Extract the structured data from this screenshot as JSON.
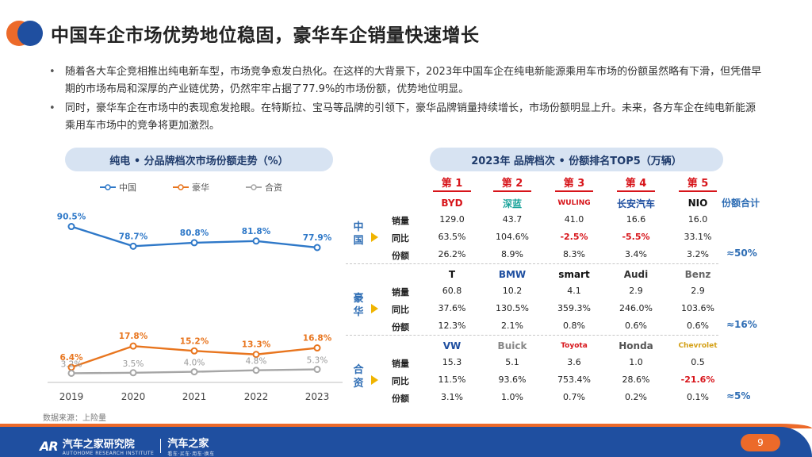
{
  "header": {
    "title": "中国车企市场优势地位稳固，豪华车企销量快速增长"
  },
  "bullets": [
    "随着各大车企竞相推出纯电新车型，市场竞争愈发白热化。在这样的大背景下，2023年中国车企在纯电新能源乘用车市场的份额虽然略有下滑，但凭借早期的市场布局和深厚的产业链优势，仍然牢牢占据了77.9%的市场份额，优势地位明显。",
    "同时，豪华车企在市场中的表现愈发抢眼。在特斯拉、宝马等品牌的引领下，豪华品牌销量持续增长，市场份额明显上升。未来，各方车企在纯电新能源乘用车市场中的竞争将更加激烈。"
  ],
  "left_panel": {
    "title": "纯电 • 分品牌档次市场份额走势（%）"
  },
  "chart_data": {
    "type": "line",
    "title": "纯电 • 分品牌档次市场份额走势（%）",
    "x": [
      "2019",
      "2020",
      "2021",
      "2022",
      "2023"
    ],
    "series": [
      {
        "name": "中国",
        "color": "#2e78c8",
        "values": [
          90.5,
          78.7,
          80.8,
          81.8,
          77.9
        ],
        "labels": [
          "90.5%",
          "78.7%",
          "80.8%",
          "81.8%",
          "77.9%"
        ]
      },
      {
        "name": "豪华",
        "color": "#e8751e",
        "values": [
          6.4,
          17.8,
          15.2,
          13.3,
          16.8
        ],
        "labels": [
          "6.4%",
          "17.8%",
          "15.2%",
          "13.3%",
          "16.8%"
        ]
      },
      {
        "name": "合资",
        "color": "#a6a6a6",
        "values": [
          3.2,
          3.5,
          4.0,
          4.8,
          5.3
        ],
        "labels": [
          "3.2%",
          "3.5%",
          "4.0%",
          "4.8%",
          "5.3%"
        ]
      }
    ],
    "legend": "top",
    "grid": false
  },
  "source": "数据来源：上险量",
  "right_panel": {
    "title": "2023年 品牌档次 • 份额排名TOP5（万辆）",
    "ranks": [
      "第 1",
      "第 2",
      "第 3",
      "第 4",
      "第 5"
    ],
    "sum_header": "份额合计",
    "row_labels": [
      "销量",
      "同比",
      "份额"
    ],
    "groups": [
      {
        "label": "中国",
        "brands": [
          {
            "logo": "BYD",
            "icon": "byd-logo",
            "color": "#d7141a",
            "sales": "129.0",
            "yoy": "63.5%",
            "share": "26.2%",
            "yoy_neg": false
          },
          {
            "logo": "深蓝",
            "icon": "deepal-logo",
            "color": "#19a39a",
            "sales": "43.7",
            "yoy": "104.6%",
            "share": "8.9%",
            "yoy_neg": false
          },
          {
            "logo": "WULING",
            "icon": "wuling-logo",
            "color": "#d7141a",
            "sales": "41.0",
            "yoy": "-2.5%",
            "share": "8.3%",
            "yoy_neg": true
          },
          {
            "logo": "长安汽车",
            "icon": "changan-logo",
            "color": "#1f4fa0",
            "sales": "16.6",
            "yoy": "-5.5%",
            "share": "3.4%",
            "yoy_neg": true
          },
          {
            "logo": "NIO",
            "icon": "nio-logo",
            "color": "#111111",
            "sales": "16.0",
            "yoy": "33.1%",
            "share": "3.2%",
            "yoy_neg": false
          }
        ],
        "sum": "≈50%"
      },
      {
        "label": "豪华",
        "brands": [
          {
            "logo": "T",
            "icon": "tesla-logo",
            "color": "#111111",
            "sales": "60.8",
            "yoy": "37.6%",
            "share": "12.3%",
            "yoy_neg": false
          },
          {
            "logo": "BMW",
            "icon": "bmw-logo",
            "color": "#1f4fa0",
            "sales": "10.2",
            "yoy": "130.5%",
            "share": "2.1%",
            "yoy_neg": false
          },
          {
            "logo": "smart",
            "icon": "smart-logo",
            "color": "#111111",
            "sales": "4.1",
            "yoy": "359.3%",
            "share": "0.8%",
            "yoy_neg": false
          },
          {
            "logo": "Audi",
            "icon": "audi-logo",
            "color": "#333333",
            "sales": "2.9",
            "yoy": "246.0%",
            "share": "0.6%",
            "yoy_neg": false
          },
          {
            "logo": "Benz",
            "icon": "mercedes-logo",
            "color": "#666666",
            "sales": "2.9",
            "yoy": "103.6%",
            "share": "0.6%",
            "yoy_neg": false
          }
        ],
        "sum": "≈16%"
      },
      {
        "label": "合资",
        "brands": [
          {
            "logo": "VW",
            "icon": "volkswagen-logo",
            "color": "#1f4fa0",
            "sales": "15.3",
            "yoy": "11.5%",
            "share": "3.1%",
            "yoy_neg": false
          },
          {
            "logo": "Buick",
            "icon": "buick-logo",
            "color": "#888888",
            "sales": "5.1",
            "yoy": "93.6%",
            "share": "1.0%",
            "yoy_neg": false
          },
          {
            "logo": "Toyota",
            "icon": "toyota-logo",
            "color": "#d7141a",
            "sales": "3.6",
            "yoy": "753.4%",
            "share": "0.7%",
            "yoy_neg": false
          },
          {
            "logo": "Honda",
            "icon": "honda-logo",
            "color": "#555555",
            "sales": "1.0",
            "yoy": "28.6%",
            "share": "0.2%",
            "yoy_neg": false
          },
          {
            "logo": "Chevrolet",
            "icon": "chevrolet-logo",
            "color": "#d4a017",
            "sales": "0.5",
            "yoy": "-21.6%",
            "share": "0.1%",
            "yoy_neg": true
          }
        ],
        "sum": "≈5%"
      }
    ]
  },
  "footer": {
    "brand": "汽车之家研究院",
    "brand_sub": "AUTOHOME RESEARCH INSTITUTE",
    "brand2": "汽车之家",
    "brand2_sub": "看车·买车·用车·换车",
    "page": "9"
  }
}
